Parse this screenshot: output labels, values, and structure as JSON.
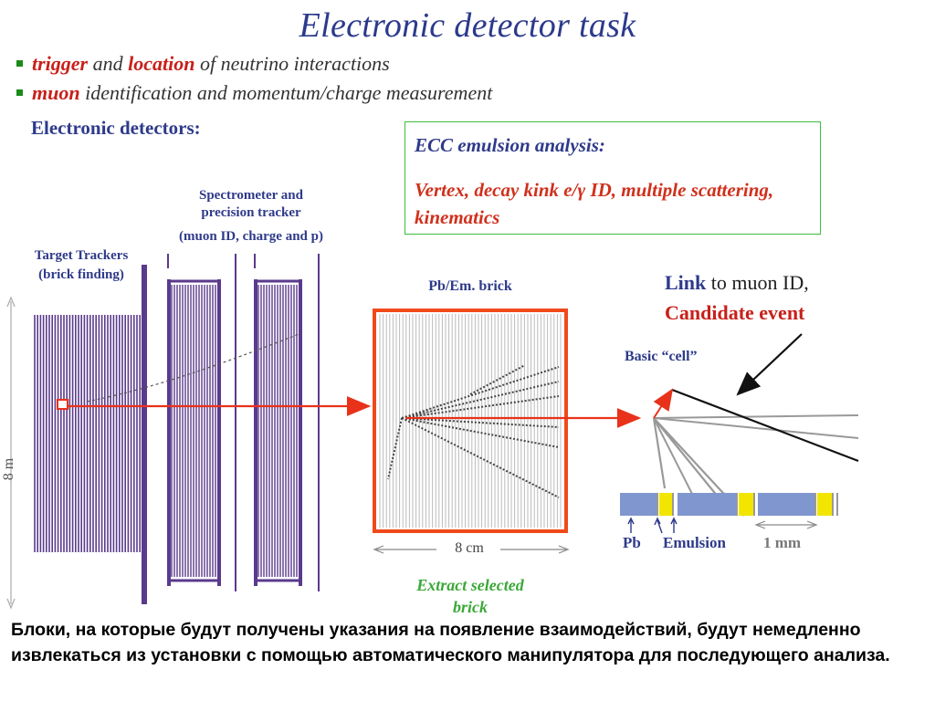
{
  "title": "Electronic detector task",
  "bullets": [
    {
      "highlight1": "trigger",
      "mid": "and",
      "highlight2": "location",
      "rest": "of neutrino interactions"
    },
    {
      "highlight1": "muon",
      "rest": "identification and momentum/charge measurement"
    }
  ],
  "electronic_detectors_label": "Electronic detectors:",
  "ecc": {
    "title": "ECC emulsion analysis:",
    "body": "Vertex, decay kink  e/γ ID, multiple scattering, kinematics"
  },
  "detector": {
    "spectrometer_label_line1": "Spectrometer and",
    "spectrometer_label_line2": "precision tracker",
    "spectrometer_label_line3": "(muon ID, charge and p)",
    "target_trackers_line1": "Target Trackers",
    "target_trackers_line2": "(brick finding)",
    "height_label": "8 m"
  },
  "brick": {
    "label": "Pb/Em. brick",
    "width_label": "8 cm",
    "extract_line1": "Extract selected",
    "extract_line2": "brick"
  },
  "cell": {
    "link_word": "Link",
    "link_rest": "to muon ID,",
    "candidate": "Candidate event",
    "basic_cell": "Basic “cell”",
    "pb": "Pb",
    "emulsion": "Emulsion",
    "scale": "1 mm"
  },
  "footer": "Блоки, на которые будут получены указания на появление взаимодействий, будут немедленно извлекаться из установки с помощью автоматического манипулятора для последующего анализа.",
  "colors": {
    "title": "#2c3a8c",
    "accent_red": "#c8201a",
    "detector_purple": "#5a3a8c",
    "ecc_border": "#3cbf3c",
    "brick_frame": "#f04a1a",
    "pb_blue": "#7f96cf",
    "emulsion_yellow": "#f2e600"
  }
}
